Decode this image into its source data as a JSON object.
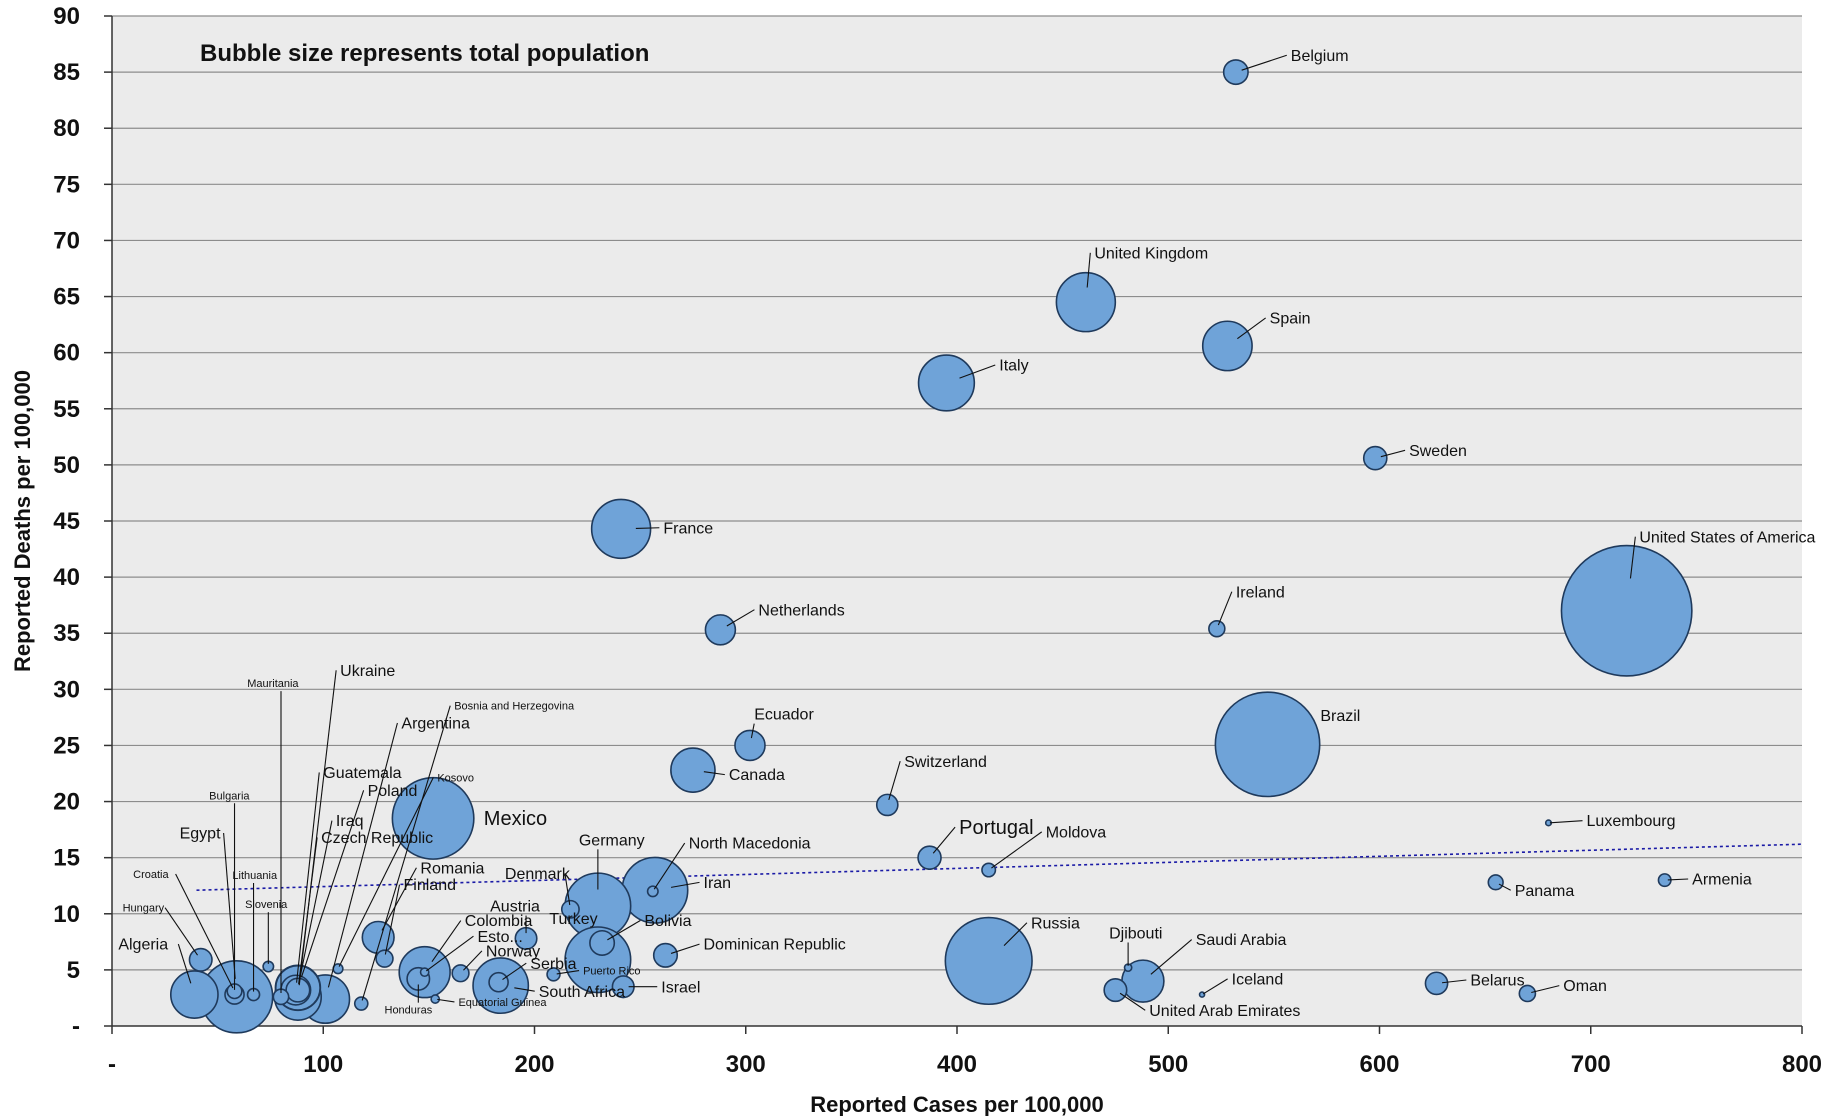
{
  "chart_data": {
    "type": "scatter",
    "subtype": "bubble",
    "annotation": "Bubble size represents total population",
    "xlabel": "Reported Cases per 100,000",
    "ylabel": "Reported Deaths per 100,000",
    "xlim": [
      0,
      800
    ],
    "ylim": [
      0,
      90
    ],
    "x_ticks": [
      {
        "value": 0,
        "label": "-"
      },
      {
        "value": 100,
        "label": "100"
      },
      {
        "value": 200,
        "label": "200"
      },
      {
        "value": 300,
        "label": "300"
      },
      {
        "value": 400,
        "label": "400"
      },
      {
        "value": 500,
        "label": "500"
      },
      {
        "value": 600,
        "label": "600"
      },
      {
        "value": 700,
        "label": "700"
      },
      {
        "value": 800,
        "label": "800"
      }
    ],
    "y_ticks": [
      {
        "value": 0,
        "label": "-"
      },
      {
        "value": 5,
        "label": "5"
      },
      {
        "value": 10,
        "label": "10"
      },
      {
        "value": 15,
        "label": "15"
      },
      {
        "value": 20,
        "label": "20"
      },
      {
        "value": 25,
        "label": "25"
      },
      {
        "value": 30,
        "label": "30"
      },
      {
        "value": 35,
        "label": "35"
      },
      {
        "value": 40,
        "label": "40"
      },
      {
        "value": 45,
        "label": "45"
      },
      {
        "value": 50,
        "label": "50"
      },
      {
        "value": 55,
        "label": "55"
      },
      {
        "value": 60,
        "label": "60"
      },
      {
        "value": 65,
        "label": "65"
      },
      {
        "value": 70,
        "label": "70"
      },
      {
        "value": 75,
        "label": "75"
      },
      {
        "value": 80,
        "label": "80"
      },
      {
        "value": 85,
        "label": "85"
      },
      {
        "value": 90,
        "label": "90"
      }
    ],
    "grid": true,
    "colors": {
      "bubble_fill": "#6fa3d8",
      "bubble_stroke": "#1f3a5c",
      "trend": "#1a1aa6",
      "plot_bg": "#ebebeb",
      "grid": "#8c8c8c"
    },
    "trendline": {
      "style": "dotted",
      "from": [
        40,
        12.1
      ],
      "to": [
        800,
        16.2
      ]
    },
    "points": [
      {
        "name": "Belgium",
        "x": 532,
        "y": 85,
        "population": 11.5,
        "label_x": 558,
        "label_y": 86
      },
      {
        "name": "United Kingdom",
        "x": 461,
        "y": 64.5,
        "population": 67,
        "label_x": 465,
        "label_y": 68.4
      },
      {
        "name": "Spain",
        "x": 528,
        "y": 60.6,
        "population": 47,
        "label_x": 548,
        "label_y": 62.6
      },
      {
        "name": "Italy",
        "x": 395,
        "y": 57.3,
        "population": 60,
        "label_x": 420,
        "label_y": 58.4
      },
      {
        "name": "Sweden",
        "x": 598,
        "y": 50.6,
        "population": 10.3,
        "label_x": 614,
        "label_y": 50.8
      },
      {
        "name": "France",
        "x": 241,
        "y": 44.3,
        "population": 67,
        "label_x": 261,
        "label_y": 43.9
      },
      {
        "name": "United States of America",
        "x": 717,
        "y": 37,
        "population": 328,
        "label_x": 723,
        "label_y": 43.1
      },
      {
        "name": "Netherlands",
        "x": 288,
        "y": 35.3,
        "population": 17.3,
        "label_x": 306,
        "label_y": 36.6
      },
      {
        "name": "Ireland",
        "x": 523,
        "y": 35.4,
        "population": 4.9,
        "label_x": 532,
        "label_y": 38.2
      },
      {
        "name": "Brazil",
        "x": 547,
        "y": 25.1,
        "population": 210,
        "label_x": 572,
        "label_y": 27.2
      },
      {
        "name": "Ecuador",
        "x": 302,
        "y": 25,
        "population": 17.4,
        "label_x": 304,
        "label_y": 27.3
      },
      {
        "name": "Canada",
        "x": 275,
        "y": 22.8,
        "population": 37.6,
        "label_x": 292,
        "label_y": 21.9
      },
      {
        "name": "Switzerland",
        "x": 367,
        "y": 19.7,
        "population": 8.6,
        "label_x": 375,
        "label_y": 23.1
      },
      {
        "name": "Mexico",
        "x": 152,
        "y": 18.5,
        "population": 128,
        "label_x": 176,
        "label_y": 17.9,
        "label_size": 20
      },
      {
        "name": "Luxembourg",
        "x": 680,
        "y": 18.1,
        "population": 0.6,
        "label_x": 698,
        "label_y": 17.8
      },
      {
        "name": "Portugal",
        "x": 387,
        "y": 15,
        "population": 10.2,
        "label_x": 401,
        "label_y": 17.1,
        "label_size": 20
      },
      {
        "name": "Moldova",
        "x": 415,
        "y": 13.9,
        "population": 3.5,
        "label_x": 442,
        "label_y": 16.8
      },
      {
        "name": "North Macedonia",
        "x": 256,
        "y": 12,
        "population": 2.1,
        "label_x": 273,
        "label_y": 15.8
      },
      {
        "name": "Iran",
        "x": 257,
        "y": 12.1,
        "population": 83,
        "label_x": 280,
        "label_y": 12.3
      },
      {
        "name": "Panama",
        "x": 655,
        "y": 12.8,
        "population": 4.2,
        "label_x": 664,
        "label_y": 11.6
      },
      {
        "name": "Armenia",
        "x": 735,
        "y": 13,
        "population": 3,
        "label_x": 748,
        "label_y": 12.6
      },
      {
        "name": "Germany",
        "x": 230,
        "y": 10.7,
        "population": 83,
        "label_x": 221,
        "label_y": 16.1
      },
      {
        "name": "Denmark",
        "x": 217,
        "y": 10.4,
        "population": 5.8,
        "label_x": 186,
        "label_y": 13.1
      },
      {
        "name": "Russia",
        "x": 415,
        "y": 5.8,
        "population": 145,
        "label_x": 435,
        "label_y": 8.7
      },
      {
        "name": "Saudi Arabia",
        "x": 488,
        "y": 4,
        "population": 34,
        "label_x": 513,
        "label_y": 7.2
      },
      {
        "name": "Djibouti",
        "x": 481,
        "y": 5.2,
        "population": 1,
        "label_x": 472,
        "label_y": 7.8
      },
      {
        "name": "Iceland",
        "x": 516,
        "y": 2.8,
        "population": 0.4,
        "label_x": 530,
        "label_y": 3.7
      },
      {
        "name": "United Arab Emirates",
        "x": 475,
        "y": 3.2,
        "population": 9.8,
        "label_x": 491,
        "label_y": 0.9
      },
      {
        "name": "Belarus",
        "x": 627,
        "y": 3.8,
        "population": 9.5,
        "label_x": 643,
        "label_y": 3.6
      },
      {
        "name": "Oman",
        "x": 670,
        "y": 2.9,
        "population": 5,
        "label_x": 687,
        "label_y": 3.1
      },
      {
        "name": "Dominican Republic",
        "x": 262,
        "y": 6.3,
        "population": 10.7,
        "label_x": 280,
        "label_y": 6.8
      },
      {
        "name": "Israel",
        "x": 242,
        "y": 3.5,
        "population": 9,
        "label_x": 260,
        "label_y": 3
      },
      {
        "name": "Bolivia",
        "x": 232,
        "y": 7.4,
        "population": 11.5,
        "label_x": 252,
        "label_y": 8.9
      },
      {
        "name": "Turkey",
        "x": 230,
        "y": 5.9,
        "population": 83,
        "label_x": 207,
        "label_y": 9.1
      },
      {
        "name": "Puerto Rico",
        "x": 209,
        "y": 4.6,
        "population": 3.2,
        "label_x": 223,
        "label_y": 4.6,
        "label_size": 11
      },
      {
        "name": "Austria",
        "x": 196,
        "y": 7.8,
        "population": 8.9,
        "label_x": 179,
        "label_y": 10.2
      },
      {
        "name": "Serbia",
        "x": 183,
        "y": 3.9,
        "population": 7,
        "label_x": 198,
        "label_y": 5.1
      },
      {
        "name": "South Africa",
        "x": 184,
        "y": 3.6,
        "population": 59,
        "label_x": 202,
        "label_y": 2.6
      },
      {
        "name": "Norway",
        "x": 165,
        "y": 4.7,
        "population": 5.4,
        "label_x": 177,
        "label_y": 6.2
      },
      {
        "name": "Estonia",
        "x": 148,
        "y": 4.8,
        "population": 1.3,
        "label_x": 173,
        "label_y": 7.5,
        "display_label": "Esto..."
      },
      {
        "name": "Colombia",
        "x": 148,
        "y": 4.8,
        "population": 50,
        "label_x": 167,
        "label_y": 8.9
      },
      {
        "name": "Honduras",
        "x": 145,
        "y": 4.2,
        "population": 9.7,
        "label_x": 129,
        "label_y": 1.1,
        "label_size": 11
      },
      {
        "name": "Equatorial Guinea",
        "x": 153,
        "y": 2.4,
        "population": 1.3,
        "label_x": 164,
        "label_y": 1.8,
        "label_size": 11
      },
      {
        "name": "Romania",
        "x": 126,
        "y": 7.9,
        "population": 19.4,
        "label_x": 146,
        "label_y": 13.6
      },
      {
        "name": "Finland",
        "x": 129,
        "y": 6,
        "population": 5.5,
        "label_x": 138,
        "label_y": 12.1
      },
      {
        "name": "Kosovo",
        "x": 107,
        "y": 5.1,
        "population": 1.8,
        "label_x": 154,
        "label_y": 21.8,
        "label_size": 11
      },
      {
        "name": "Bosnia and Herzegovina",
        "x": 118,
        "y": 2,
        "population": 3.3,
        "label_x": 162,
        "label_y": 28.2,
        "label_size": 11
      },
      {
        "name": "Argentina",
        "x": 101,
        "y": 2.4,
        "population": 45,
        "label_x": 137,
        "label_y": 26.5
      },
      {
        "name": "Czech Republic",
        "x": 88,
        "y": 3.2,
        "population": 10.7,
        "label_x": 99,
        "label_y": 16.3
      },
      {
        "name": "Poland",
        "x": 88,
        "y": 3.4,
        "population": 38,
        "label_x": 121,
        "label_y": 20.5
      },
      {
        "name": "Iraq",
        "x": 88,
        "y": 3.4,
        "population": 39,
        "label_x": 106,
        "label_y": 17.8
      },
      {
        "name": "Guatemala",
        "x": 87,
        "y": 3.2,
        "population": 17,
        "label_x": 100,
        "label_y": 22.1
      },
      {
        "name": "Ukraine",
        "x": 88,
        "y": 2.6,
        "population": 42,
        "label_x": 108,
        "label_y": 31.2
      },
      {
        "name": "Mauritania",
        "x": 80,
        "y": 2.6,
        "population": 4.5,
        "label_x": 64,
        "label_y": 30.2,
        "label_size": 11
      },
      {
        "name": "Slovenia",
        "x": 74,
        "y": 5.3,
        "population": 2.1,
        "label_x": 63,
        "label_y": 10.5,
        "label_size": 11
      },
      {
        "name": "Lithuania",
        "x": 67,
        "y": 2.8,
        "population": 2.8,
        "label_x": 57,
        "label_y": 13.1,
        "label_size": 11
      },
      {
        "name": "Bulgaria",
        "x": 58,
        "y": 2.8,
        "population": 7,
        "label_x": 46,
        "label_y": 20.2,
        "label_size": 11
      },
      {
        "name": "Egypt",
        "x": 59,
        "y": 2.6,
        "population": 100,
        "label_x": 32,
        "label_y": 16.7
      },
      {
        "name": "Croatia",
        "x": 58,
        "y": 3.1,
        "population": 4.1,
        "label_x": 10,
        "label_y": 13.2,
        "label_size": 11
      },
      {
        "name": "Hungary",
        "x": 42,
        "y": 5.9,
        "population": 9.8,
        "label_x": 5,
        "label_y": 10.2,
        "label_size": 11
      },
      {
        "name": "Algeria",
        "x": 39,
        "y": 2.8,
        "population": 43,
        "label_x": 3,
        "label_y": 6.8
      }
    ]
  }
}
